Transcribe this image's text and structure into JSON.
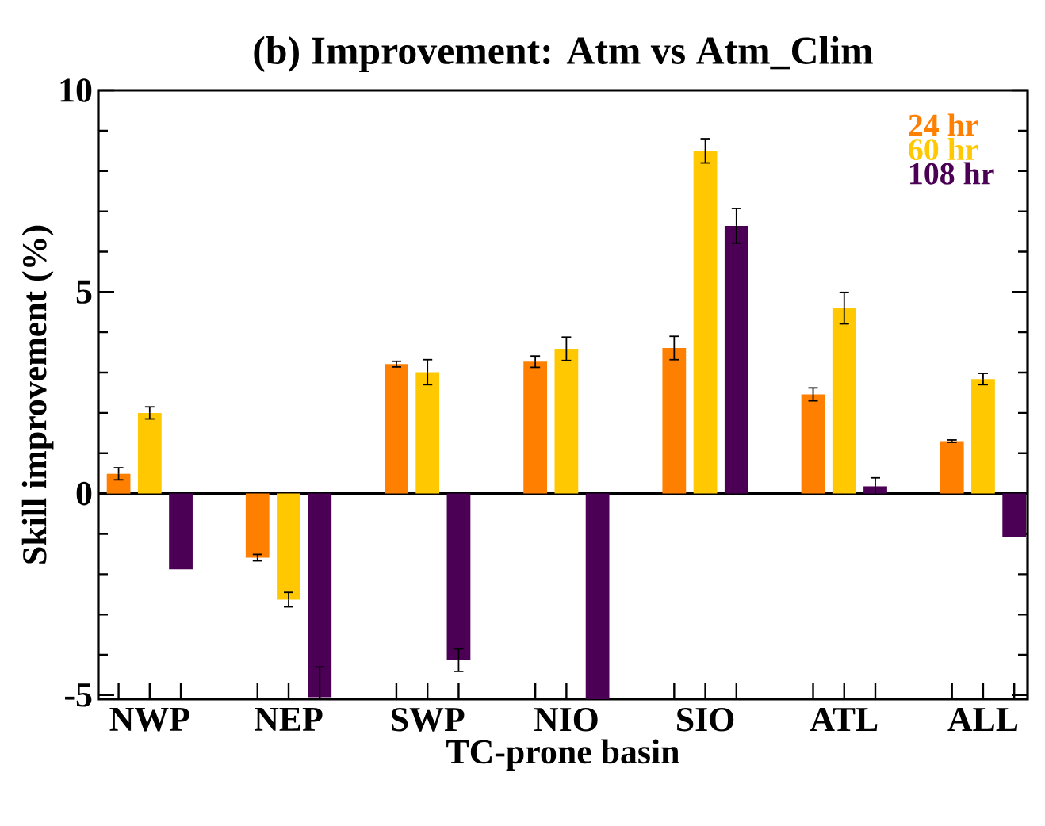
{
  "chart_data": {
    "type": "bar",
    "title": "(b) Improvement: Atm vs Atm_Clim",
    "xlabel": "TC-prone basin",
    "ylabel": "Skill improvement (%)",
    "categories": [
      "NWP",
      "NEP",
      "SWP",
      "NIO",
      "SIO",
      "ATL",
      "ALL"
    ],
    "series": [
      {
        "name": "24 hr",
        "color": "#ff7f00",
        "values": [
          0.49,
          -1.59,
          3.21,
          3.27,
          3.61,
          2.46,
          1.3
        ],
        "errors": [
          0.15,
          0.08,
          0.07,
          0.14,
          0.29,
          0.16,
          0.03
        ]
      },
      {
        "name": "60 hr",
        "color": "#ffc800",
        "values": [
          2.0,
          -2.63,
          3.01,
          3.59,
          8.5,
          4.6,
          2.84
        ],
        "errors": [
          0.15,
          0.18,
          0.31,
          0.29,
          0.3,
          0.39,
          0.14
        ]
      },
      {
        "name": "108 hr",
        "color": "#4b0055",
        "values": [
          -1.88,
          -5.05,
          -4.13,
          -5.1,
          6.64,
          0.18,
          -1.09
        ],
        "errors": [
          null,
          [
            -5.08,
            -4.3
          ],
          0.28,
          null,
          0.43,
          0.21,
          null
        ]
      }
    ],
    "ylim": [
      -5.1,
      10
    ],
    "yticks": [
      -5,
      0,
      5,
      10
    ],
    "legend": "top right"
  }
}
